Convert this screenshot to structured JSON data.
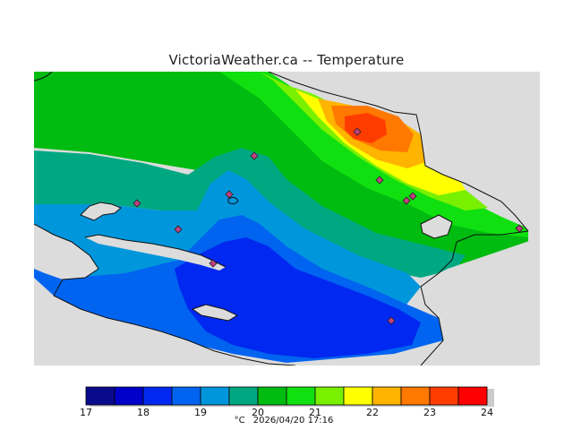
{
  "title": "VictoriaWeather.ca -- Temperature",
  "colors": {
    "background_land": "#dcdcdc",
    "sea_mask": "#dcdcdc",
    "levels": [
      "#0a0a8c",
      "#0000c8",
      "#0028f0",
      "#0064f0",
      "#0096dc",
      "#00a882",
      "#00bb10",
      "#10e010",
      "#78f000",
      "#ffff00",
      "#ffb400",
      "#ff7800",
      "#ff3c00",
      "#ff0000"
    ]
  },
  "legend": {
    "ticks": [
      "17",
      "18",
      "19",
      "20",
      "21",
      "22",
      "23",
      "24"
    ],
    "units": "°C",
    "timestamp": "2026/04/20 17:16"
  },
  "stations_icon": "diamond-marker-icon",
  "stations_count_note": ""
}
